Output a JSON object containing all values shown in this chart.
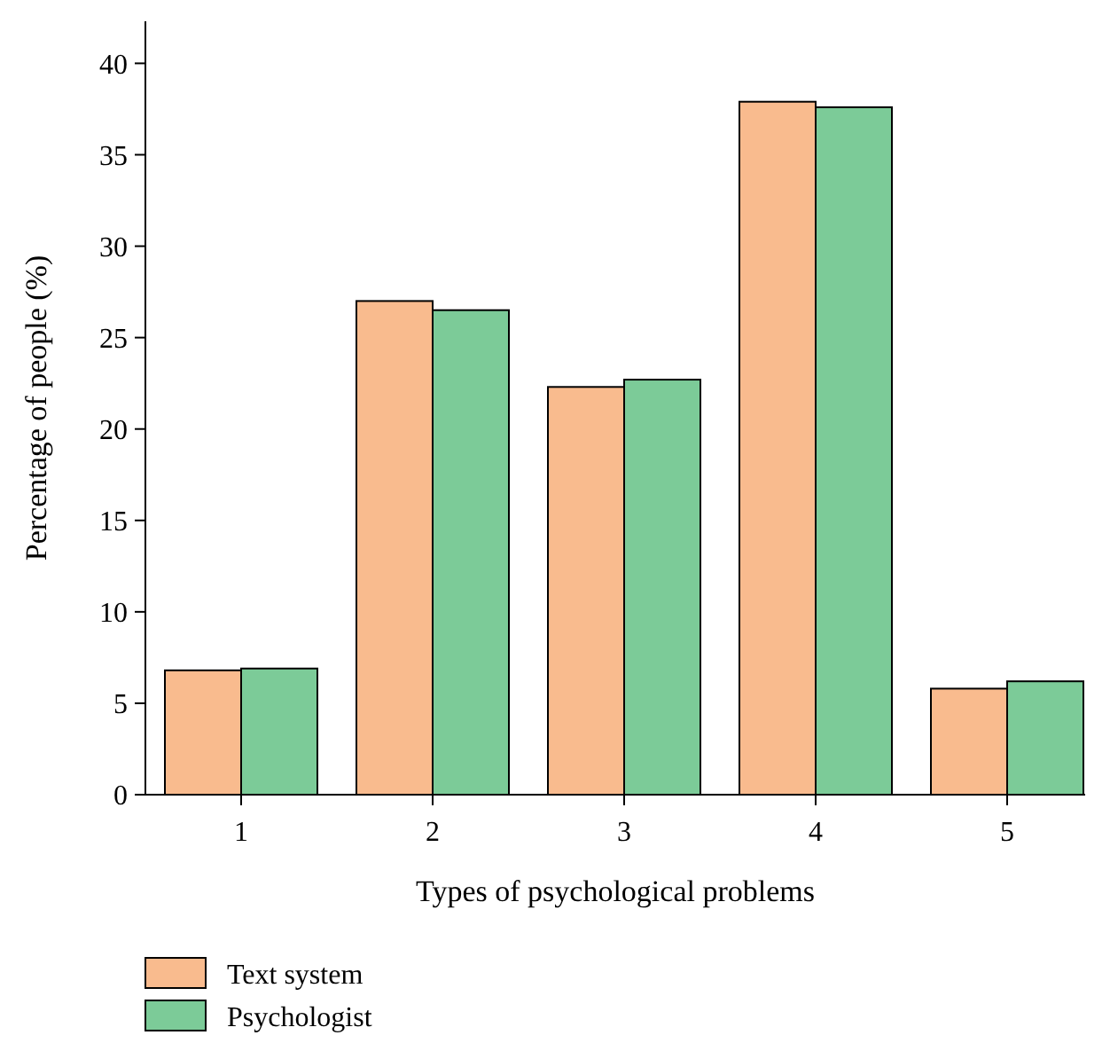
{
  "chart_data": {
    "type": "bar",
    "xlabel": "Types of psychological problems",
    "ylabel": "Percentage of people (%)",
    "categories": [
      "1",
      "2",
      "3",
      "4",
      "5"
    ],
    "series": [
      {
        "name": "Text system",
        "color": "#f9bb8e",
        "values": [
          6.8,
          27.0,
          22.3,
          37.9,
          5.8
        ]
      },
      {
        "name": "Psychologist",
        "color": "#7ccb98",
        "values": [
          6.9,
          26.5,
          22.7,
          37.6,
          6.2
        ]
      }
    ],
    "ylim": [
      0,
      42.3
    ],
    "yticks": [
      0,
      5,
      10,
      15,
      20,
      25,
      30,
      35,
      40
    ],
    "grid": false,
    "legend": "bottom left"
  }
}
